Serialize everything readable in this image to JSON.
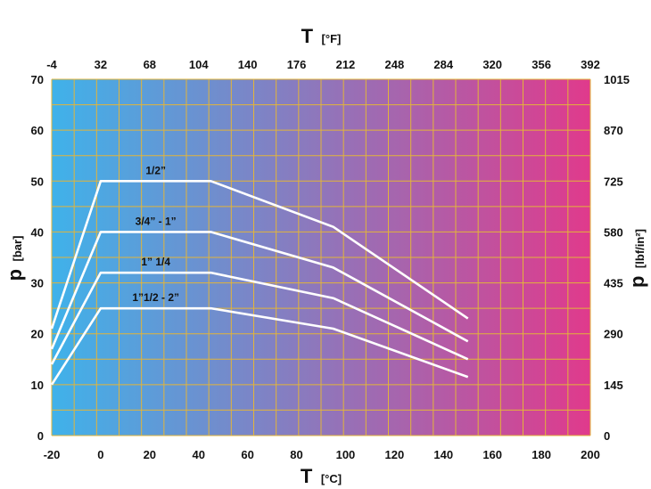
{
  "chart_data": {
    "type": "line",
    "bottom_axis": {
      "symbol": "T",
      "unit": "[°C]",
      "range": [
        -20,
        200
      ],
      "ticks": [
        "-20",
        "0",
        "20",
        "40",
        "60",
        "80",
        "100",
        "120",
        "140",
        "160",
        "180",
        "200"
      ]
    },
    "top_axis": {
      "symbol": "T",
      "unit": "[°F]",
      "ticks": [
        "-4",
        "32",
        "68",
        "104",
        "140",
        "176",
        "212",
        "248",
        "284",
        "320",
        "356",
        "392"
      ]
    },
    "left_axis": {
      "symbol": "p",
      "unit": "[bar]",
      "range": [
        0,
        70
      ],
      "ticks": [
        "0",
        "10",
        "20",
        "30",
        "40",
        "50",
        "60",
        "70"
      ]
    },
    "right_axis": {
      "symbol": "p",
      "unit": "[lbf/in²]",
      "ticks": [
        "0",
        "145",
        "290",
        "435",
        "580",
        "725",
        "870",
        "1015"
      ]
    },
    "grid": true,
    "background_gradient": [
      "#3fb2ea",
      "#e03a8c"
    ],
    "line_color": "#ffffff",
    "series": [
      {
        "name": "1/2”",
        "x": [
          -20,
          0,
          45,
          95,
          150
        ],
        "y": [
          21,
          50,
          50,
          41,
          23
        ]
      },
      {
        "name": "3/4” - 1”",
        "x": [
          -20,
          0,
          45,
          95,
          150
        ],
        "y": [
          17,
          40,
          40,
          33,
          18.5
        ]
      },
      {
        "name": "1” 1/4",
        "x": [
          -20,
          0,
          45,
          95,
          150
        ],
        "y": [
          14,
          32,
          32,
          27,
          15
        ]
      },
      {
        "name": "1”1/2 - 2”",
        "x": [
          -20,
          0,
          45,
          95,
          150
        ],
        "y": [
          10,
          25,
          25,
          21,
          11.5
        ]
      }
    ]
  }
}
